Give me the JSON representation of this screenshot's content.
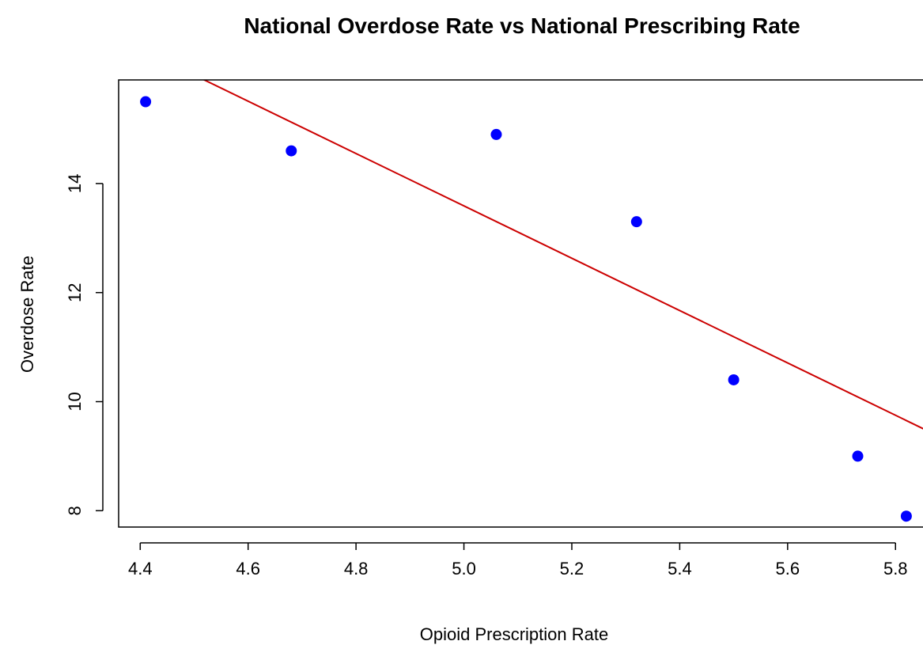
{
  "chart_data": {
    "type": "scatter",
    "title": "National Overdose Rate vs National Prescribing Rate",
    "xlabel": "Opioid Prescription Rate",
    "ylabel": "Overdose Rate",
    "xlim": [
      4.36,
      5.87
    ],
    "ylim": [
      7.7,
      15.9
    ],
    "xticks": [
      4.4,
      4.6,
      4.8,
      5.0,
      5.2,
      5.4,
      5.6,
      5.8
    ],
    "xtick_labels": [
      "4.4",
      "4.6",
      "4.8",
      "5.0",
      "5.2",
      "5.4",
      "5.6",
      "5.8"
    ],
    "yticks": [
      8,
      10,
      12,
      14
    ],
    "ytick_labels": [
      "8",
      "10",
      "12",
      "14"
    ],
    "grid": false,
    "series": [
      {
        "type": "scatter",
        "color": "#0000ff",
        "points": [
          {
            "x": 4.41,
            "y": 15.5
          },
          {
            "x": 4.68,
            "y": 14.6
          },
          {
            "x": 5.06,
            "y": 14.9
          },
          {
            "x": 5.32,
            "y": 13.3
          },
          {
            "x": 5.5,
            "y": 10.4
          },
          {
            "x": 5.73,
            "y": 9.0
          },
          {
            "x": 5.82,
            "y": 7.9
          }
        ]
      },
      {
        "type": "line",
        "color": "#cc0000",
        "fit": {
          "intercept": 37.59,
          "slope": -4.8
        }
      }
    ]
  }
}
